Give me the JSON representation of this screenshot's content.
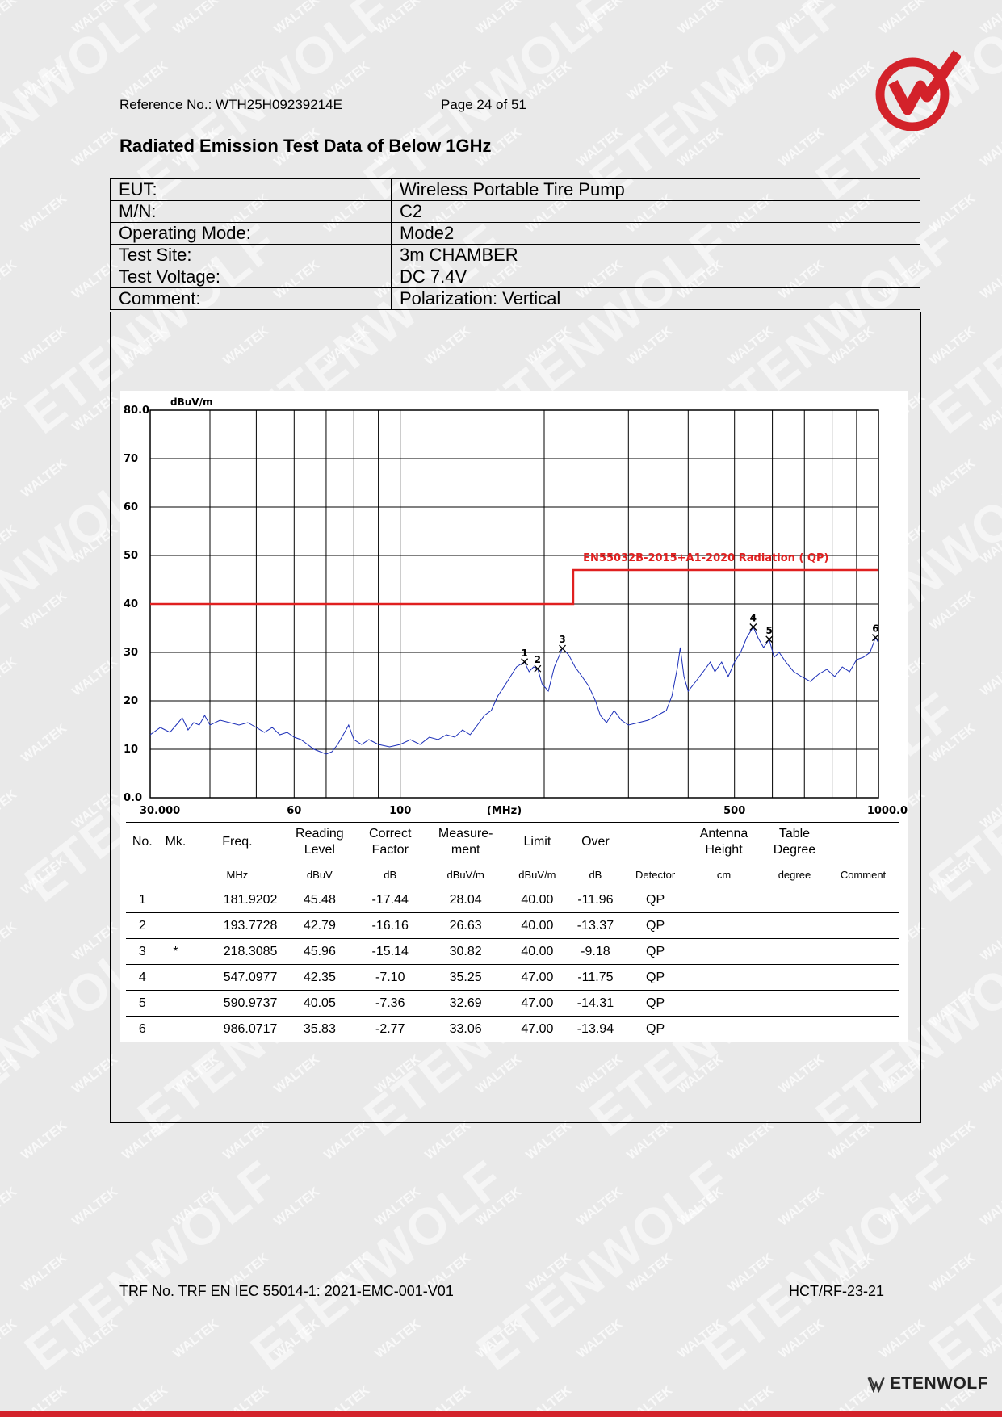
{
  "header": {
    "reference": "Reference No.: WTH25H09239214E",
    "page": "Page 24 of 51"
  },
  "title": "Radiated Emission Test Data of Below 1GHz",
  "info_rows": [
    {
      "label": "EUT:",
      "value": "Wireless Portable Tire Pump"
    },
    {
      "label": "M/N:",
      "value": "C2"
    },
    {
      "label": "Operating Mode:",
      "value": "Mode2"
    },
    {
      "label": "Test Site:",
      "value": "3m CHAMBER"
    },
    {
      "label": "Test Voltage:",
      "value": "DC 7.4V"
    },
    {
      "label": "Comment:",
      "value": "Polarization: Vertical"
    }
  ],
  "chart_data": {
    "type": "line",
    "ylabel": "dBuV/m",
    "xlabel": "(MHz)",
    "x_scale": "log",
    "xlim": [
      30,
      1000
    ],
    "ylim": [
      0,
      80
    ],
    "x_tick_labels": [
      "30.000",
      "60",
      "100",
      "(MHz)",
      "500",
      "1000.0"
    ],
    "y_tick_labels": [
      "80.0",
      "70",
      "60",
      "50",
      "40",
      "30",
      "20",
      "10",
      "0.0"
    ],
    "grid": true,
    "limit_line": {
      "label": "EN55032B-2015+A1-2020 Radiation ( QP)",
      "color": "#e02020",
      "points": [
        [
          30,
          40
        ],
        [
          230,
          40
        ],
        [
          230,
          47
        ],
        [
          1000,
          47
        ]
      ]
    },
    "trace_color": "#1c2fb8",
    "trace": [
      [
        30,
        13
      ],
      [
        31.5,
        14.5
      ],
      [
        33,
        13.5
      ],
      [
        34,
        15
      ],
      [
        35,
        16.5
      ],
      [
        36,
        14
      ],
      [
        37,
        15.5
      ],
      [
        38,
        15
      ],
      [
        39,
        17
      ],
      [
        40,
        15
      ],
      [
        42,
        16
      ],
      [
        44,
        15.5
      ],
      [
        46,
        15
      ],
      [
        48,
        15.5
      ],
      [
        50,
        14.5
      ],
      [
        52,
        13.5
      ],
      [
        54,
        14.5
      ],
      [
        56,
        13
      ],
      [
        58,
        13.5
      ],
      [
        60,
        12.5
      ],
      [
        62,
        12
      ],
      [
        64,
        11
      ],
      [
        66,
        10
      ],
      [
        68,
        9.5
      ],
      [
        70,
        9
      ],
      [
        72,
        9.5
      ],
      [
        74,
        11
      ],
      [
        76,
        13
      ],
      [
        78,
        15
      ],
      [
        80,
        12
      ],
      [
        83,
        11
      ],
      [
        86,
        12
      ],
      [
        90,
        11
      ],
      [
        95,
        10.5
      ],
      [
        100,
        11
      ],
      [
        105,
        12
      ],
      [
        110,
        11
      ],
      [
        115,
        12.5
      ],
      [
        120,
        12
      ],
      [
        125,
        13
      ],
      [
        130,
        12.5
      ],
      [
        135,
        14
      ],
      [
        140,
        13
      ],
      [
        145,
        15
      ],
      [
        150,
        17
      ],
      [
        155,
        18
      ],
      [
        160,
        21
      ],
      [
        165,
        23
      ],
      [
        170,
        25
      ],
      [
        175,
        27
      ],
      [
        181.92,
        28.04
      ],
      [
        186,
        26
      ],
      [
        190,
        27
      ],
      [
        193.77,
        26.63
      ],
      [
        198,
        23.5
      ],
      [
        204,
        22
      ],
      [
        210,
        27
      ],
      [
        218.31,
        30.82
      ],
      [
        225,
        29.5
      ],
      [
        232,
        27
      ],
      [
        240,
        25
      ],
      [
        248,
        23
      ],
      [
        256,
        20
      ],
      [
        262,
        17
      ],
      [
        270,
        15.5
      ],
      [
        280,
        18
      ],
      [
        290,
        16
      ],
      [
        300,
        15
      ],
      [
        315,
        15.5
      ],
      [
        330,
        16
      ],
      [
        345,
        17
      ],
      [
        360,
        18
      ],
      [
        370,
        21
      ],
      [
        380,
        27
      ],
      [
        385,
        31
      ],
      [
        392,
        25
      ],
      [
        400,
        22
      ],
      [
        415,
        24
      ],
      [
        430,
        26
      ],
      [
        445,
        28
      ],
      [
        455,
        26
      ],
      [
        470,
        28
      ],
      [
        485,
        25
      ],
      [
        500,
        28
      ],
      [
        515,
        30
      ],
      [
        530,
        33
      ],
      [
        547.1,
        35.25
      ],
      [
        560,
        33
      ],
      [
        575,
        31
      ],
      [
        590.97,
        32.69
      ],
      [
        605,
        29
      ],
      [
        620,
        30
      ],
      [
        640,
        28
      ],
      [
        665,
        26
      ],
      [
        690,
        25
      ],
      [
        720,
        24
      ],
      [
        750,
        25.5
      ],
      [
        780,
        26.5
      ],
      [
        810,
        25
      ],
      [
        840,
        27
      ],
      [
        870,
        26
      ],
      [
        900,
        28.5
      ],
      [
        930,
        29
      ],
      [
        960,
        30
      ],
      [
        986.07,
        33.06
      ],
      [
        1000,
        32
      ]
    ],
    "markers": [
      {
        "label": "1",
        "x": 181.9202,
        "y": 28.04
      },
      {
        "label": "2",
        "x": 193.7728,
        "y": 26.63
      },
      {
        "label": "3",
        "x": 218.3085,
        "y": 30.82
      },
      {
        "label": "4",
        "x": 547.0977,
        "y": 35.25
      },
      {
        "label": "5",
        "x": 590.9737,
        "y": 32.69
      },
      {
        "label": "6",
        "x": 986.0717,
        "y": 33.06
      }
    ]
  },
  "data_table": {
    "head": [
      "No.",
      "Mk.",
      "Freq.",
      "Reading\nLevel",
      "Correct\nFactor",
      "Measure-\nment",
      "Limit",
      "Over",
      "",
      "Antenna\nHeight",
      "Table\nDegree",
      ""
    ],
    "units": [
      "",
      "",
      "MHz",
      "dBuV",
      "dB",
      "dBuV/m",
      "dBuV/m",
      "dB",
      "Detector",
      "cm",
      "degree",
      "Comment"
    ],
    "rows": [
      [
        "1",
        "",
        "181.9202",
        "45.48",
        "-17.44",
        "28.04",
        "40.00",
        "-11.96",
        "QP",
        "",
        "",
        ""
      ],
      [
        "2",
        "",
        "193.7728",
        "42.79",
        "-16.16",
        "26.63",
        "40.00",
        "-13.37",
        "QP",
        "",
        "",
        ""
      ],
      [
        "3",
        "*",
        "218.3085",
        "45.96",
        "-15.14",
        "30.82",
        "40.00",
        "-9.18",
        "QP",
        "",
        "",
        ""
      ],
      [
        "4",
        "",
        "547.0977",
        "42.35",
        "-7.10",
        "35.25",
        "47.00",
        "-11.75",
        "QP",
        "",
        "",
        ""
      ],
      [
        "5",
        "",
        "590.9737",
        "40.05",
        "-7.36",
        "32.69",
        "47.00",
        "-14.31",
        "QP",
        "",
        "",
        ""
      ],
      [
        "6",
        "",
        "986.0717",
        "35.83",
        "-2.77",
        "33.06",
        "47.00",
        "-13.94",
        "QP",
        "",
        "",
        ""
      ]
    ]
  },
  "footer": {
    "trf": "TRF No. TRF EN IEC 55014-1: 2021-EMC-001-V01",
    "code": "HCT/RF-23-21",
    "brand": "ETENWOLF"
  },
  "watermarks": {
    "small": "WALTEK",
    "big": "ETENWOLF"
  },
  "colors": {
    "accent_red": "#d3222a",
    "trace_blue": "#1c2fb8",
    "limit_red": "#e02020"
  }
}
